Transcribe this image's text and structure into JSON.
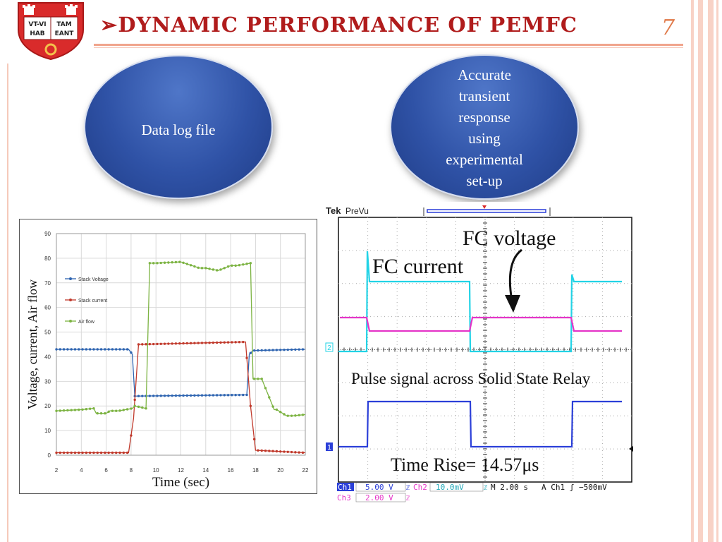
{
  "slide": {
    "title": "Dynamic performance of PEMFC",
    "title_bullet": "➢",
    "slide_number": "7",
    "logo_text": [
      "VT-VI",
      "TAM",
      "HAB",
      "EANT"
    ]
  },
  "bubbles": {
    "left": "Data log file",
    "right": "Accurate\ntransient\nresponse\nusing\nexperimental\nset-up"
  },
  "colors": {
    "title": "#b01c1c",
    "accent": "#f0a48c",
    "bubble": "#2f52a6",
    "stack_voltage": "#2e64b0",
    "stack_current": "#c0392b",
    "air_flow": "#7cb342",
    "scope_cyan": "#22d3e6",
    "scope_magenta": "#e535c8",
    "scope_blue": "#2b3fd8"
  },
  "chart_data": {
    "type": "line",
    "title": "",
    "xlabel": "Time (sec)",
    "ylabel": "Voltage, current, Air flow",
    "xlim": [
      2,
      22
    ],
    "ylim": [
      0,
      90
    ],
    "xticks": [
      2,
      4,
      6,
      8,
      10,
      12,
      14,
      16,
      18,
      20,
      22
    ],
    "yticks": [
      0,
      10,
      20,
      30,
      40,
      50,
      60,
      70,
      80,
      90
    ],
    "legend": "left",
    "series": [
      {
        "name": "Stack Voltage",
        "x": [
          2,
          7.8,
          8.1,
          8.3,
          17.3,
          17.5,
          17.8,
          22
        ],
        "y": [
          43,
          43,
          41,
          24,
          24.5,
          41,
          42.5,
          43
        ]
      },
      {
        "name": "Stack current",
        "x": [
          2,
          7.8,
          8.2,
          8.6,
          17.2,
          17.6,
          18.0,
          22
        ],
        "y": [
          1,
          1,
          15,
          45,
          46,
          20,
          2,
          1
        ]
      },
      {
        "name": "Air flow",
        "x": [
          2,
          4,
          5,
          5.2,
          6,
          6.3,
          7,
          8.1,
          8.3,
          9.2,
          9.5,
          10,
          12,
          13.5,
          14,
          15,
          16,
          16.5,
          17.6,
          17.8,
          18.5,
          19.5,
          19.7,
          20.5,
          21,
          22
        ],
        "y": [
          18,
          18.5,
          19,
          17,
          17,
          18,
          18,
          19,
          20,
          19,
          78,
          78,
          78.5,
          76,
          76,
          75,
          77,
          77,
          78,
          31,
          31,
          18.5,
          18.5,
          16,
          16,
          16.5
        ]
      }
    ]
  },
  "scope": {
    "brand": "Tek",
    "mode": "PreVu",
    "labels": {
      "fc_voltage": "FC voltage",
      "fc_current": "FC current",
      "pulse": "Pulse signal across Solid State Relay",
      "rise": "Time Rise= 14.57μs"
    },
    "markers": {
      "ch2": "2",
      "ch1": "1"
    },
    "readout": {
      "ch1_name": "Ch1",
      "ch1_scale": "5.00 V",
      "ch1_sym": "ℤ",
      "ch2_name": "Ch2",
      "ch2_scale": "10.0mV",
      "ch2_sym": "ℤ",
      "time_div": "M 2.00 s",
      "trigger": "A  Ch1 ʃ −500mV",
      "ch3_name": "Ch3",
      "ch3_scale": "2.00 V",
      "ch3_sym": "ℤ"
    }
  }
}
